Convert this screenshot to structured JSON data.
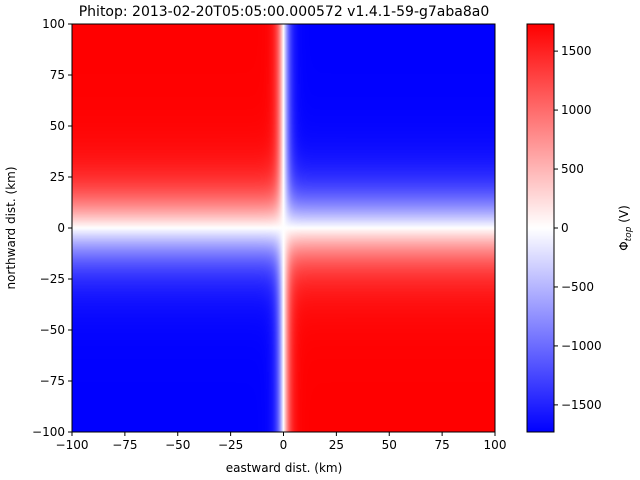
{
  "chart_data": {
    "type": "heatmap",
    "title": "Phitop: 2013-02-20T05:05:00.000572  v1.4.1-59-g7aba8a0",
    "xlabel": "eastward dist. (km)",
    "ylabel": "northward dist. (km)",
    "xlim": [
      -100,
      100
    ],
    "ylim": [
      -100,
      100
    ],
    "x_ticks": [
      -100,
      -75,
      -50,
      -25,
      0,
      25,
      50,
      75,
      100
    ],
    "y_ticks": [
      -100,
      -75,
      -50,
      -25,
      0,
      25,
      50,
      75,
      100
    ],
    "x_tick_labels": [
      "−100",
      "−75",
      "−50",
      "−25",
      "0",
      "25",
      "50",
      "75",
      "100"
    ],
    "y_tick_labels": [
      "−100",
      "−75",
      "−50",
      "−25",
      "0",
      "25",
      "50",
      "75",
      "100"
    ],
    "colorbar": {
      "label_main": "Φ",
      "label_sub": "top",
      "label_unit": " (V)",
      "vmin": -1730,
      "vmax": 1730,
      "ticks": [
        -1500,
        -1000,
        -500,
        0,
        500,
        1000,
        1500
      ],
      "tick_labels": [
        "−1500",
        "−1000",
        "−500",
        "0",
        "500",
        "1000",
        "1500"
      ],
      "colormap": "bwr",
      "colors": {
        "low": "#0000ff",
        "mid": "#ffffff",
        "high": "#ff0000"
      }
    },
    "field": {
      "description_of_pattern": "quadrant pattern: phi = -A * tanh(x/wx) * tanh(y/wy)",
      "amplitude": 1730,
      "x_transition_halfwidth_km": 3.5,
      "y_transition_halfwidth_km": 22
    }
  }
}
